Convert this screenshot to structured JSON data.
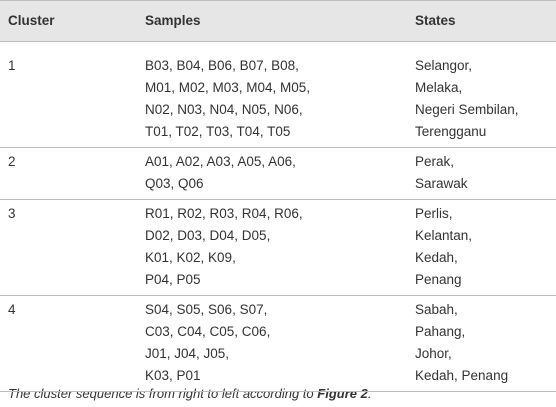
{
  "table": {
    "headers": [
      "Cluster",
      "Samples",
      "States"
    ],
    "rows": [
      [
        "1",
        [
          "B03, B04, B06, B07, B08,",
          "M01, M02, M03, M04, M05,",
          "N02, N03, N04, N05, N06,",
          "T01, T02, T03, T04, T05"
        ],
        [
          "Selangor,",
          "Melaka,",
          "Negeri Sembilan,",
          "Terengganu"
        ]
      ],
      [
        "2",
        [
          "A01, A02, A03, A05, A06,",
          "Q03, Q06"
        ],
        [
          "Perak,",
          "Sarawak"
        ]
      ],
      [
        "3",
        [
          "R01, R02, R03, R04, R06,",
          "D02, D03, D04, D05,",
          "K01, K02, K09,",
          "P04, P05"
        ],
        [
          "Perlis,",
          "Kelantan,",
          "Kedah,",
          "Penang"
        ]
      ],
      [
        "4",
        [
          "S04, S05, S06, S07,",
          "C03, C04, C05, C06,",
          "J01, J04, J05,",
          "K03, P01"
        ],
        [
          "Sabah,",
          "Pahang,",
          "Johor,",
          "Kedah, Penang"
        ]
      ]
    ]
  },
  "footnote": {
    "text": "The cluster sequence is from right to left according to ",
    "ref": "Figure 2",
    "end": "."
  }
}
